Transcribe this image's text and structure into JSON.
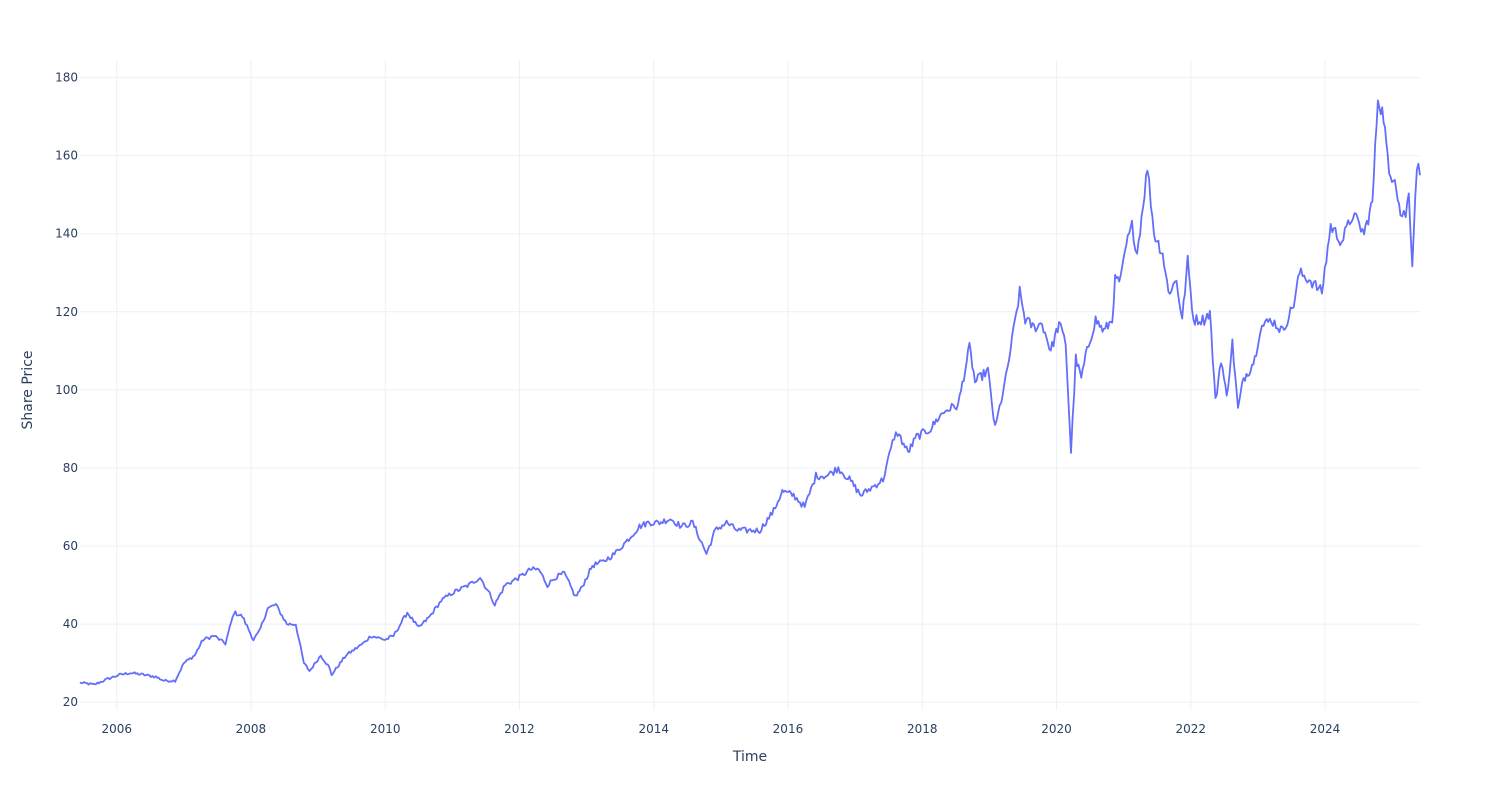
{
  "chart_data": {
    "type": "line",
    "title": "",
    "xlabel": "Time",
    "ylabel": "Share Price",
    "x_ticks": [
      "2006",
      "2008",
      "2010",
      "2012",
      "2014",
      "2016",
      "2018",
      "2020",
      "2022",
      "2024"
    ],
    "y_ticks": [
      "20",
      "40",
      "60",
      "80",
      "100",
      "120",
      "140",
      "160",
      "180"
    ],
    "xlim": [
      "2005-06-15",
      "2025-06-01"
    ],
    "ylim": [
      18,
      184.5
    ],
    "grid": true,
    "legend": "none",
    "line_color": "#636efa",
    "grid_color": "#ebf0f8",
    "text_color": "#2a3f5f",
    "series": [
      {
        "x": [
          "2005-06-15",
          "2005-09-01",
          "2005-11-15",
          "2006-01-15",
          "2006-03-15",
          "2006-06-01",
          "2006-08-01",
          "2006-09-15",
          "2006-11-15",
          "2007-01-01",
          "2007-03-01",
          "2007-04-15",
          "2007-06-15",
          "2007-08-15",
          "2007-10-01",
          "2007-11-15",
          "2008-01-15",
          "2008-02-15",
          "2008-04-01",
          "2008-05-15",
          "2008-07-15",
          "2008-09-01",
          "2008-10-15",
          "2008-11-15",
          "2009-01-15",
          "2009-03-01",
          "2009-03-15",
          "2009-06-01",
          "2009-09-01",
          "2009-10-15",
          "2010-01-01",
          "2010-02-15",
          "2010-05-01",
          "2010-07-01",
          "2010-09-01",
          "2010-11-01",
          "2011-01-01",
          "2011-04-01",
          "2011-06-01",
          "2011-08-01",
          "2011-08-20",
          "2011-10-15",
          "2012-01-01",
          "2012-03-01",
          "2012-04-15",
          "2012-06-01",
          "2012-07-15",
          "2012-09-01",
          "2012-11-01",
          "2012-12-01",
          "2013-02-01",
          "2013-04-01",
          "2013-06-01",
          "2013-08-01",
          "2013-10-15",
          "2013-12-01",
          "2014-02-01",
          "2014-04-01",
          "2014-06-01",
          "2014-08-01",
          "2014-10-15",
          "2014-12-01",
          "2015-02-01",
          "2015-04-01",
          "2015-06-01",
          "2015-08-01",
          "2015-10-15",
          "2015-12-01",
          "2016-02-01",
          "2016-04-01",
          "2016-06-01",
          "2016-08-01",
          "2016-10-01",
          "2016-12-01",
          "2017-02-01",
          "2017-04-01",
          "2017-06-01",
          "2017-08-01",
          "2017-08-20",
          "2017-10-15",
          "2017-12-01",
          "2018-02-15",
          "2018-04-01",
          "2018-05-15",
          "2018-07-15",
          "2018-09-15",
          "2018-10-15",
          "2018-12-24",
          "2019-02-01",
          "2019-04-01",
          "2019-06-15",
          "2019-07-15",
          "2019-09-01",
          "2019-10-15",
          "2019-12-01",
          "2020-01-15",
          "2020-02-20",
          "2020-03-20",
          "2020-04-15",
          "2020-05-15",
          "2020-06-15",
          "2020-08-01",
          "2020-09-15",
          "2020-10-30",
          "2020-11-15",
          "2020-12-15",
          "2021-01-15",
          "2021-02-15",
          "2021-03-15",
          "2021-05-10",
          "2021-06-15",
          "2021-08-01",
          "2021-09-01",
          "2021-10-15",
          "2021-11-15",
          "2021-12-15",
          "2022-01-15",
          "2022-03-15",
          "2022-04-15",
          "2022-05-15",
          "2022-06-15",
          "2022-07-15",
          "2022-08-15",
          "2022-09-15",
          "2022-10-15",
          "2022-11-15",
          "2022-12-15",
          "2023-01-15",
          "2023-03-15",
          "2023-05-15",
          "2023-07-15",
          "2023-08-15",
          "2023-10-15",
          "2023-12-15",
          "2024-02-01",
          "2024-04-01",
          "2024-06-01",
          "2024-08-01",
          "2024-09-15",
          "2024-10-15",
          "2024-11-15",
          "2024-12-15",
          "2025-01-15",
          "2025-02-15",
          "2025-03-15",
          "2025-04-01",
          "2025-04-20",
          "2025-05-15",
          "2025-06-01"
        ],
        "y": [
          25,
          24.5,
          26,
          27,
          27.5,
          27,
          26.5,
          25.5,
          25.5,
          30,
          32,
          36,
          37,
          35,
          43,
          42,
          36,
          38,
          44,
          45,
          40,
          40,
          30,
          28,
          32,
          29,
          27,
          32,
          35,
          37,
          36,
          37,
          43,
          39,
          42,
          46,
          48,
          50,
          52,
          47,
          45,
          50,
          52,
          54,
          54,
          50,
          52,
          53,
          47,
          49,
          55,
          56,
          58,
          61,
          65,
          66,
          66,
          67,
          65,
          66,
          58,
          64,
          66,
          64,
          64,
          64,
          69,
          74,
          73,
          70,
          78,
          78,
          80,
          77,
          73,
          75,
          77,
          88,
          89,
          84,
          88,
          90,
          93,
          95,
          96,
          111,
          102,
          105,
          90,
          103,
          125,
          118,
          116,
          117,
          110,
          117,
          112,
          84,
          108,
          103,
          110,
          118,
          115,
          118,
          128,
          128,
          137,
          142,
          135,
          157,
          140,
          135,
          125,
          128,
          118,
          133,
          118,
          118,
          120,
          97,
          108,
          98,
          112,
          95,
          103,
          105,
          108,
          116,
          118,
          115,
          122,
          130,
          128,
          125,
          142,
          138,
          145,
          140,
          148,
          175,
          170,
          155,
          155,
          145,
          145,
          150,
          133,
          158,
          155
        ],
        "name": ""
      }
    ]
  }
}
